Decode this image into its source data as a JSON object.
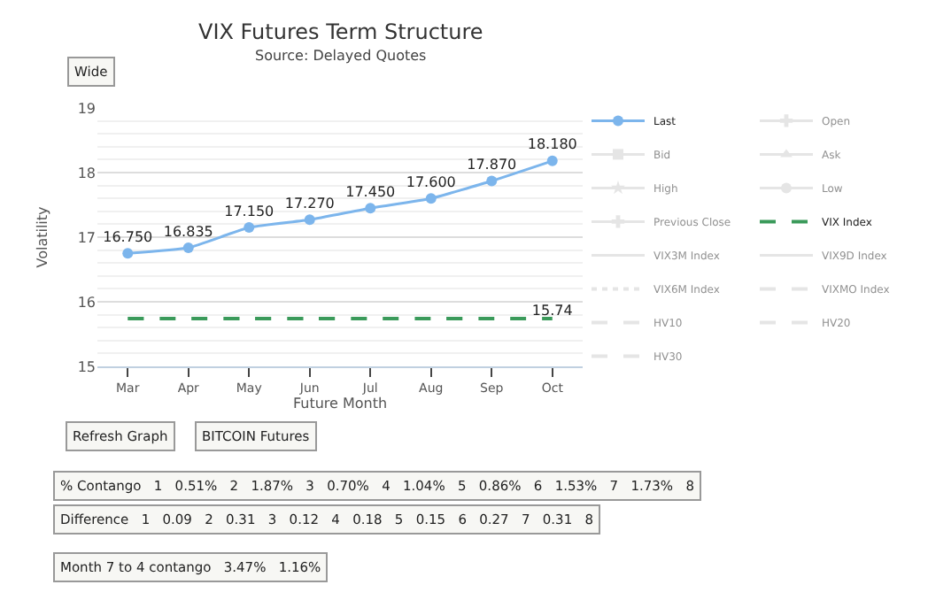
{
  "chart_data": {
    "type": "line",
    "title": "VIX Futures Term Structure",
    "subtitle": "Source: Delayed Quotes",
    "xlabel": "Future Month",
    "ylabel": "Volatility",
    "categories": [
      "Mar",
      "Apr",
      "May",
      "Jun",
      "Jul",
      "Aug",
      "Sep",
      "Oct"
    ],
    "series": [
      {
        "name": "Last",
        "color": "#7cb5ec",
        "values": [
          16.75,
          16.835,
          17.15,
          17.27,
          17.45,
          17.6,
          17.87,
          18.18
        ],
        "marker": "circle",
        "line_style": "solid",
        "value_labels": [
          "16.750",
          "16.835",
          "17.150",
          "17.270",
          "17.450",
          "17.600",
          "17.870",
          "18.180"
        ]
      },
      {
        "name": "Open",
        "color": "#cccccc",
        "values": [
          null,
          null,
          null,
          null,
          null,
          null,
          null,
          null
        ],
        "marker": "cross",
        "line_style": "solid"
      },
      {
        "name": "Bid",
        "color": "#cccccc",
        "values": [
          null,
          null,
          null,
          null,
          null,
          null,
          null,
          null
        ],
        "marker": "square",
        "line_style": "solid"
      },
      {
        "name": "Ask",
        "color": "#cccccc",
        "values": [
          null,
          null,
          null,
          null,
          null,
          null,
          null,
          null
        ],
        "marker": "triangle",
        "line_style": "solid"
      },
      {
        "name": "High",
        "color": "#cccccc",
        "values": [
          null,
          null,
          null,
          null,
          null,
          null,
          null,
          null
        ],
        "marker": "star",
        "line_style": "solid"
      },
      {
        "name": "Low",
        "color": "#cccccc",
        "values": [
          null,
          null,
          null,
          null,
          null,
          null,
          null,
          null
        ],
        "marker": "circle",
        "line_style": "solid"
      },
      {
        "name": "Previous Close",
        "color": "#cccccc",
        "values": [
          null,
          null,
          null,
          null,
          null,
          null,
          null,
          null
        ],
        "marker": "cross",
        "line_style": "solid"
      },
      {
        "name": "VIX Index",
        "color": "#3a9a5a",
        "values": [
          15.74,
          15.74,
          15.74,
          15.74,
          15.74,
          15.74,
          15.74,
          15.74
        ],
        "marker": "none",
        "line_style": "dashed",
        "value_labels": [
          null,
          null,
          null,
          null,
          null,
          null,
          null,
          "15.74"
        ]
      },
      {
        "name": "VIX3M Index",
        "color": "#cccccc",
        "values": [
          null,
          null,
          null,
          null,
          null,
          null,
          null,
          null
        ],
        "marker": "none",
        "line_style": "solid"
      },
      {
        "name": "VIX9D Index",
        "color": "#cccccc",
        "values": [
          null,
          null,
          null,
          null,
          null,
          null,
          null,
          null
        ],
        "marker": "none",
        "line_style": "solid"
      },
      {
        "name": "VIX6M Index",
        "color": "#cccccc",
        "values": [
          null,
          null,
          null,
          null,
          null,
          null,
          null,
          null
        ],
        "marker": "none",
        "line_style": "dotted"
      },
      {
        "name": "VIXMO Index",
        "color": "#cccccc",
        "values": [
          null,
          null,
          null,
          null,
          null,
          null,
          null,
          null
        ],
        "marker": "none",
        "line_style": "dashed"
      },
      {
        "name": "HV10",
        "color": "#cccccc",
        "values": [
          null,
          null,
          null,
          null,
          null,
          null,
          null,
          null
        ],
        "marker": "none",
        "line_style": "dashed"
      },
      {
        "name": "HV20",
        "color": "#cccccc",
        "values": [
          null,
          null,
          null,
          null,
          null,
          null,
          null,
          null
        ],
        "marker": "none",
        "line_style": "dashed"
      },
      {
        "name": "HV30",
        "color": "#cccccc",
        "values": [
          null,
          null,
          null,
          null,
          null,
          null,
          null,
          null
        ],
        "marker": "none",
        "line_style": "dashed"
      }
    ],
    "ylim": [
      15,
      19
    ],
    "yticks": [
      15,
      16,
      17,
      18,
      19
    ],
    "grid": "y",
    "legend": "right",
    "annotations": [
      "Wide",
      "Refresh Graph",
      "BITCOIN Futures",
      "% Contango   1   0.51%   2   1.87%   3   0.70%   4   1.04%   5   0.86%   6   1.53%   7   1.73%   8",
      "Difference   1   0.09   2   0.31   3   0.12   4   0.18   5   0.15   6   0.27   7   0.31   8",
      "Month 7 to 4 contango   3.47%   1.16%"
    ]
  }
}
